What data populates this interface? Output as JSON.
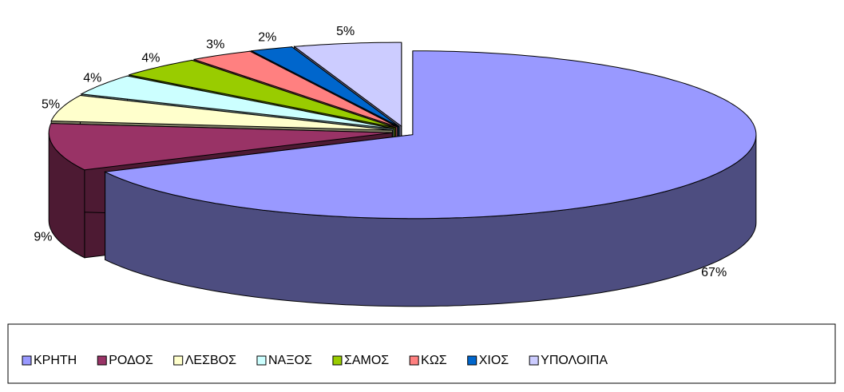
{
  "chart_data": {
    "type": "pie3d",
    "categories": [
      "ΚΡΗΤΗ",
      "ΡΟΔΟΣ",
      "ΛΕΣΒΟΣ",
      "ΝΑΞΟΣ",
      "ΣΑΜΟΣ",
      "ΚΩΣ",
      "ΧΙΟΣ",
      "ΥΠΟΛΟΙΠΑ"
    ],
    "values": [
      67,
      9,
      5,
      4,
      4,
      3,
      2,
      5
    ],
    "value_labels": [
      "67%",
      "9%",
      "5%",
      "4%",
      "4%",
      "3%",
      "2%",
      "5%"
    ],
    "colors": [
      "#9999ff",
      "#993366",
      "#ffffcc",
      "#ccffff",
      "#99cc00",
      "#ff8080",
      "#0066cc",
      "#ccccff"
    ],
    "legend": "bottom"
  }
}
